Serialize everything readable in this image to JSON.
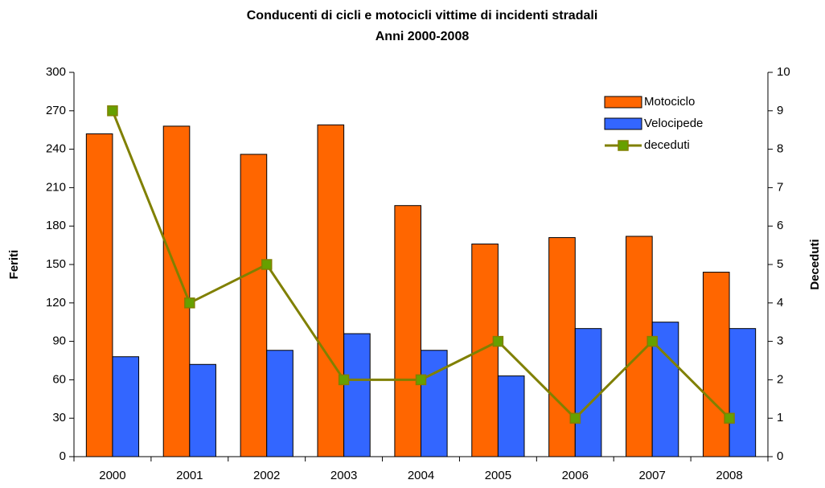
{
  "chart_data": {
    "type": "bar",
    "title": [
      "Conducenti di cicli e motocicli vittime di incidenti stradali",
      "Anni 2000-2008"
    ],
    "ylabel": "Feriti",
    "y2label": "Deceduti",
    "categories": [
      "2000",
      "2001",
      "2002",
      "2003",
      "2004",
      "2005",
      "2006",
      "2007",
      "2008"
    ],
    "series": [
      {
        "name": "Motociclo",
        "type": "bar",
        "color": "#ff6600",
        "values": [
          252,
          258,
          236,
          259,
          196,
          166,
          171,
          172,
          144
        ]
      },
      {
        "name": "Velocipede",
        "type": "bar",
        "color": "#3366ff",
        "values": [
          78,
          72,
          83,
          96,
          83,
          63,
          100,
          105,
          100
        ]
      },
      {
        "name": "deceduti",
        "type": "line",
        "axis": "y2",
        "color": "#808000",
        "marker_color": "#66a000",
        "values": [
          9,
          4,
          5,
          2,
          2,
          3,
          1,
          3,
          1
        ]
      }
    ],
    "ylim": [
      0,
      300
    ],
    "yticks": [
      0,
      30,
      60,
      90,
      120,
      150,
      180,
      210,
      240,
      270,
      300
    ],
    "y2lim": [
      0,
      10
    ],
    "y2ticks": [
      0,
      1,
      2,
      3,
      4,
      5,
      6,
      7,
      8,
      9,
      10
    ],
    "legend": "upper right"
  }
}
